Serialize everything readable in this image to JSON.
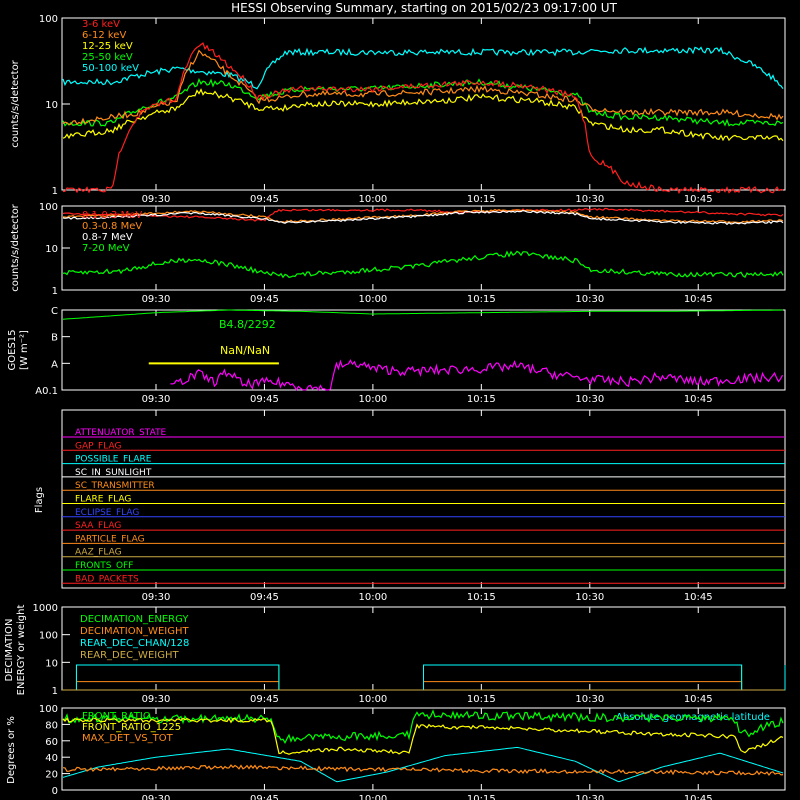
{
  "title": "HESSI Observing Summary, starting on 2015/02/23 09:17:00 UT",
  "x_tick_labels": [
    "09:30",
    "09:45",
    "10:00",
    "10:15",
    "10:30",
    "10:45"
  ],
  "x_tick_minutes": [
    30,
    45,
    60,
    75,
    90,
    105
  ],
  "x_range_minutes": [
    17,
    117
  ],
  "panels": {
    "hxr": {
      "ylabel": "counts/s/detector",
      "ytick_labels": [
        "1",
        "10",
        "100"
      ],
      "legend": [
        {
          "label": "3-6 keV",
          "color": "#ff2020"
        },
        {
          "label": "6-12 keV",
          "color": "#ff8c1a"
        },
        {
          "label": "12-25 keV",
          "color": "#ffff00"
        },
        {
          "label": "25-50 keV",
          "color": "#00ff00"
        },
        {
          "label": "50-100 keV",
          "color": "#00ffff"
        }
      ]
    },
    "gamma": {
      "ylabel": "counts/s/detector",
      "ytick_labels": [
        "1",
        "10",
        "100"
      ],
      "legend": [
        {
          "label": "0.1-0.3 MeV",
          "color": "#ff2020"
        },
        {
          "label": "0.3-0.8 MeV",
          "color": "#ff8c1a"
        },
        {
          "label": "0.8-7 MeV",
          "color": "#ffffff"
        },
        {
          "label": "7-20 MeV",
          "color": "#00ff00"
        }
      ]
    },
    "goes": {
      "ylabel": "GOES15",
      "ylabel_units": "[W m⁻²]",
      "ytick_labels": [
        "A0.1",
        "A",
        "B",
        "C"
      ],
      "annotation_level": "B4.8/2292",
      "annotation_ratio": "NaN/NaN",
      "colors": {
        "level": "#00ff00",
        "ratio": "#ffff00",
        "goes": "#ff00ff"
      }
    },
    "flags": {
      "ylabel": "Flags",
      "items": [
        {
          "label": "ATTENUATOR_STATE",
          "color": "#ff00ff"
        },
        {
          "label": "GAP_FLAG",
          "color": "#ff2020"
        },
        {
          "label": "POSSIBLE_FLARE",
          "color": "#00ffff"
        },
        {
          "label": "SC_IN_SUNLIGHT",
          "color": "#ffffff"
        },
        {
          "label": "SC_TRANSMITTER",
          "color": "#ff8c1a"
        },
        {
          "label": "FLARE_FLAG",
          "color": "#ffff00"
        },
        {
          "label": "ECLIPSE_FLAG",
          "color": "#3344ff"
        },
        {
          "label": "SAA_FLAG",
          "color": "#ff2020"
        },
        {
          "label": "PARTICLE_FLAG",
          "color": "#ff8c1a"
        },
        {
          "label": "AAZ_FLAG",
          "color": "#ccaa44"
        },
        {
          "label": "FRONTS_OFF",
          "color": "#00ff00"
        },
        {
          "label": "BAD_PACKETS",
          "color": "#ff2020"
        }
      ]
    },
    "decimation": {
      "ylabel_line1": "DECIMATION",
      "ylabel_line2": "ENERGY or weight",
      "ytick_labels": [
        "1",
        "10",
        "100",
        "1000"
      ],
      "legend": [
        {
          "label": "DECIMATION_ENERGY",
          "color": "#00ff00"
        },
        {
          "label": "DECIMATION_WEIGHT",
          "color": "#ff8c1a"
        },
        {
          "label": "REAR_DEC_CHAN/128",
          "color": "#00ffff"
        },
        {
          "label": "REAR_DEC_WEIGHT",
          "color": "#ccaa44"
        }
      ]
    },
    "ratios": {
      "ylabel": "Degrees or %",
      "ytick_labels": [
        "0",
        "20",
        "40",
        "60",
        "80",
        "100"
      ],
      "legend": [
        {
          "label": "FRONT_RATIO",
          "color": "#00ff00"
        },
        {
          "label": "FRONT_RATIO_1225",
          "color": "#ffff00"
        },
        {
          "label": "MAX_DET_VS_TOT",
          "color": "#ff8c1a"
        }
      ],
      "latitude_label": "Absolute geomagnetic latitude",
      "latitude_color": "#00ffff"
    }
  },
  "chart_data": [
    {
      "type": "line",
      "title": "HESSI Observing Summary, starting on 2015/02/23 09:17:00 UT",
      "ylabel": "counts/s/detector",
      "y_scale": "log",
      "ylim": [
        1,
        100
      ],
      "x_unit": "minutes after 09:00 UT",
      "x": [
        17,
        24,
        28,
        33,
        36,
        40,
        44,
        48,
        50,
        60,
        70,
        75,
        82,
        88,
        90,
        95,
        100,
        108,
        117
      ],
      "series": [
        {
          "name": "3-6 keV",
          "values": [
            1,
            1,
            8,
            12,
            50,
            28,
            12,
            14,
            15,
            15,
            17,
            18,
            16,
            12,
            2.5,
            1.2,
            1,
            1,
            1
          ]
        },
        {
          "name": "6-12 keV",
          "values": [
            6,
            7,
            8,
            11,
            40,
            22,
            11,
            12,
            13,
            13,
            14,
            15,
            13,
            11,
            9,
            8,
            8,
            8,
            7
          ]
        },
        {
          "name": "12-25 keV",
          "values": [
            4,
            5,
            7,
            9,
            14,
            12,
            9,
            9,
            10,
            10,
            11,
            12,
            11,
            9,
            6,
            5,
            5,
            4,
            4
          ]
        },
        {
          "name": "25-50 keV",
          "values": [
            6,
            6,
            9,
            12,
            18,
            17,
            12,
            14,
            15,
            15,
            17,
            18,
            15,
            13,
            8,
            7,
            7,
            6,
            6
          ]
        },
        {
          "name": "50-100 keV",
          "values": [
            18,
            18,
            22,
            26,
            24,
            22,
            16,
            40,
            40,
            40,
            40,
            40,
            40,
            40,
            42,
            42,
            42,
            42,
            15
          ]
        }
      ]
    },
    {
      "type": "line",
      "ylabel": "counts/s/detector",
      "y_scale": "log",
      "ylim": [
        1,
        100
      ],
      "x_unit": "minutes after 09:00 UT",
      "x": [
        17,
        25,
        35,
        45,
        47,
        55,
        66,
        73,
        80,
        88,
        90,
        100,
        110,
        117
      ],
      "series": [
        {
          "name": "0.1-0.3 MeV",
          "values": [
            65,
            62,
            55,
            45,
            80,
            80,
            80,
            70,
            80,
            80,
            85,
            75,
            65,
            60
          ]
        },
        {
          "name": "0.3-0.8 MeV",
          "values": [
            55,
            60,
            75,
            55,
            42,
            48,
            60,
            75,
            80,
            70,
            55,
            45,
            42,
            45
          ]
        },
        {
          "name": "0.8-7 MeV",
          "values": [
            50,
            55,
            68,
            50,
            40,
            45,
            56,
            70,
            75,
            65,
            50,
            42,
            38,
            42
          ]
        },
        {
          "name": "7-20 MeV",
          "values": [
            2.5,
            2.8,
            5.5,
            2.5,
            2.2,
            2.6,
            3.6,
            5.5,
            7.5,
            5,
            3,
            2.4,
            2.3,
            2.4
          ]
        }
      ]
    },
    {
      "type": "line",
      "ylabel": "GOES15",
      "ylim_labels": [
        "A0.1",
        "C"
      ],
      "x_unit": "minutes after 09:00 UT",
      "series": [
        {
          "name": "B4.8/2292",
          "color": "#00ff00",
          "x": [
            17,
            30,
            40,
            50,
            60,
            75,
            90,
            100,
            117
          ],
          "values": [
            2.65,
            2.9,
            3.0,
            2.95,
            2.85,
            2.9,
            2.95,
            2.95,
            3.0
          ]
        },
        {
          "name": "NaN/NaN",
          "color": "#ffff00",
          "x": [
            29,
            47
          ],
          "values": [
            1.0,
            1.0
          ]
        },
        {
          "name": "GOES",
          "color": "#ff00ff",
          "x": [
            32,
            34,
            36,
            38,
            40,
            42,
            46,
            54,
            55,
            58,
            60,
            65,
            70,
            75,
            80,
            85,
            90,
            95,
            100,
            105,
            110,
            117
          ],
          "values": [
            0.1,
            0.4,
            0.6,
            0.3,
            0.7,
            0.2,
            0.3,
            0.0,
            0.9,
            1.0,
            0.8,
            0.7,
            0.75,
            0.8,
            0.9,
            0.6,
            0.4,
            0.3,
            0.5,
            0.3,
            0.4,
            0.5
          ]
        }
      ]
    },
    {
      "type": "line",
      "ylabel": "DECIMATION ENERGY or weight",
      "y_scale": "log",
      "ylim": [
        1,
        1000
      ],
      "x_unit": "minutes after 09:00 UT",
      "x": [
        17,
        19,
        46,
        47,
        66,
        67,
        110,
        111,
        117
      ],
      "series": [
        {
          "name": "DECIMATION_ENERGY",
          "values": [
            1,
            8,
            8,
            1,
            1,
            8,
            8,
            1,
            8
          ]
        },
        {
          "name": "DECIMATION_WEIGHT",
          "values": [
            1,
            2,
            2,
            1,
            1,
            2,
            2,
            1,
            2
          ]
        },
        {
          "name": "REAR_DEC_CHAN/128",
          "values": [
            1,
            8,
            8,
            1,
            1,
            8,
            8,
            1,
            8
          ]
        },
        {
          "name": "REAR_DEC_WEIGHT",
          "values": [
            1,
            1,
            1,
            1,
            1,
            1,
            1,
            1,
            1
          ]
        }
      ]
    },
    {
      "type": "line",
      "ylabel": "Degrees or %",
      "ylim": [
        0,
        100
      ],
      "x_unit": "minutes after 09:00 UT",
      "series": [
        {
          "name": "FRONT_RATIO",
          "x": [
            17,
            30,
            46,
            47,
            55,
            65,
            66,
            80,
            95,
            110,
            111,
            117
          ],
          "values": [
            87,
            87,
            87,
            62,
            65,
            68,
            92,
            90,
            88,
            88,
            67,
            85
          ]
        },
        {
          "name": "FRONT_RATIO_1225",
          "x": [
            17,
            30,
            46,
            47,
            55,
            65,
            66,
            80,
            95,
            110,
            111,
            117
          ],
          "values": [
            85,
            85,
            85,
            45,
            50,
            45,
            78,
            75,
            70,
            65,
            45,
            65
          ]
        },
        {
          "name": "MAX_DET_VS_TOT",
          "x": [
            17,
            40,
            60,
            80,
            100,
            117
          ],
          "values": [
            25,
            28,
            25,
            23,
            22,
            20
          ]
        },
        {
          "name": "Absolute geomagnetic latitude",
          "x": [
            17,
            22,
            30,
            40,
            50,
            55,
            62,
            70,
            80,
            88,
            94,
            100,
            108,
            117
          ],
          "values": [
            15,
            28,
            40,
            50,
            35,
            10,
            22,
            42,
            52,
            35,
            10,
            28,
            45,
            20
          ]
        }
      ]
    }
  ]
}
